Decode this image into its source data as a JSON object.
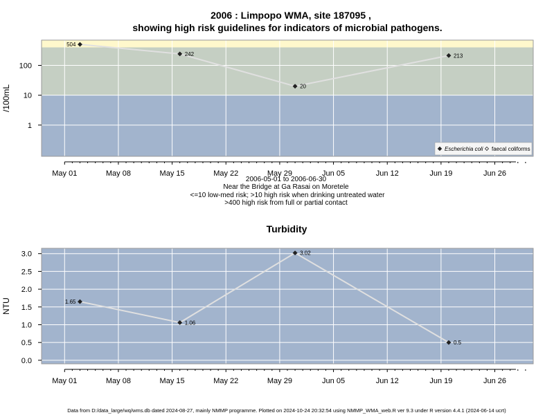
{
  "page": {
    "title_line1": "2006 : Limpopo WMA, site 187095 ,",
    "title_line2": "showing high risk guidelines for indicators of microbial pathogens.",
    "footer": "Data from D:/data_large/wq/wms.db dated 2024-08-27, mainly NMMP programme. Plotted on 2024-10-24 20:32:54 using NMMP_WMA_web.R ver 9.3 under R version 4.4.1 (2024-06-14 ucrt)"
  },
  "colors": {
    "band_low": "#a2b4cd",
    "band_mid": "#c5cfc3",
    "band_high": "#fff8cc",
    "panel_bg": "#a2b4cd",
    "grid": "#ffffff",
    "line": "#e0e0e0",
    "point": "#222222",
    "panel_border": "#999999"
  },
  "chart_data": [
    {
      "type": "line",
      "title": "",
      "ylabel": "/100mL",
      "y_scale": "log10",
      "ylim": [
        0.09,
        700
      ],
      "y_ticks": [
        "1",
        "10",
        "100"
      ],
      "x_ticks": [
        "May 01",
        "May 08",
        "May 15",
        "May 22",
        "May 29",
        "Jun 05",
        "Jun 12",
        "Jun 19",
        "Jun 26"
      ],
      "x_tick_dates": [
        "2006-05-01",
        "2006-05-08",
        "2006-05-15",
        "2006-05-22",
        "2006-05-29",
        "2006-06-05",
        "2006-06-12",
        "2006-06-19",
        "2006-06-26"
      ],
      "xlim": [
        "2006-04-28",
        "2006-07-01"
      ],
      "grid": true,
      "bands": [
        {
          "from": 0.09,
          "to": 10,
          "level": "low-med"
        },
        {
          "from": 10,
          "to": 400,
          "level": "high"
        },
        {
          "from": 400,
          "to": 700,
          "level": "high contact"
        }
      ],
      "legend": {
        "placement": "bottom-right",
        "entries": [
          {
            "label": "Escherichia coli",
            "marker": "filled-diamond",
            "italic": true
          },
          {
            "label": "faecal coliforms",
            "marker": "open-diamond",
            "italic": false
          }
        ]
      },
      "series": [
        {
          "name": "Escherichia coli",
          "x": [
            "2006-05-03",
            "2006-05-16",
            "2006-05-31",
            "2006-06-20"
          ],
          "y": [
            504,
            242,
            20,
            213
          ],
          "labels": [
            "504",
            "242",
            "20",
            "213"
          ]
        }
      ],
      "caption": [
        "2006-05-01 to 2006-06-30",
        "Near the Bridge at Ga Rasai on Moretele",
        "<=10 low-med risk; >10 high risk when drinking untreated water",
        ">400 high risk from full or partial contact"
      ]
    },
    {
      "type": "line",
      "title": "Turbidity",
      "ylabel": "NTU",
      "y_scale": "linear",
      "ylim": [
        -0.1,
        3.15
      ],
      "y_ticks": [
        "0.0",
        "0.5",
        "1.0",
        "1.5",
        "2.0",
        "2.5",
        "3.0"
      ],
      "x_ticks": [
        "May 01",
        "May 08",
        "May 15",
        "May 22",
        "May 29",
        "Jun 05",
        "Jun 12",
        "Jun 19",
        "Jun 26"
      ],
      "x_tick_dates": [
        "2006-05-01",
        "2006-05-08",
        "2006-05-15",
        "2006-05-22",
        "2006-05-29",
        "2006-06-05",
        "2006-06-12",
        "2006-06-19",
        "2006-06-26"
      ],
      "xlim": [
        "2006-04-28",
        "2006-07-01"
      ],
      "grid": true,
      "series": [
        {
          "name": "",
          "x": [
            "2006-05-03",
            "2006-05-16",
            "2006-05-31",
            "2006-06-20"
          ],
          "y": [
            1.65,
            1.06,
            3.02,
            0.5
          ],
          "labels": [
            "1.65",
            "1.06",
            "3.02",
            "0.5"
          ]
        }
      ]
    }
  ]
}
